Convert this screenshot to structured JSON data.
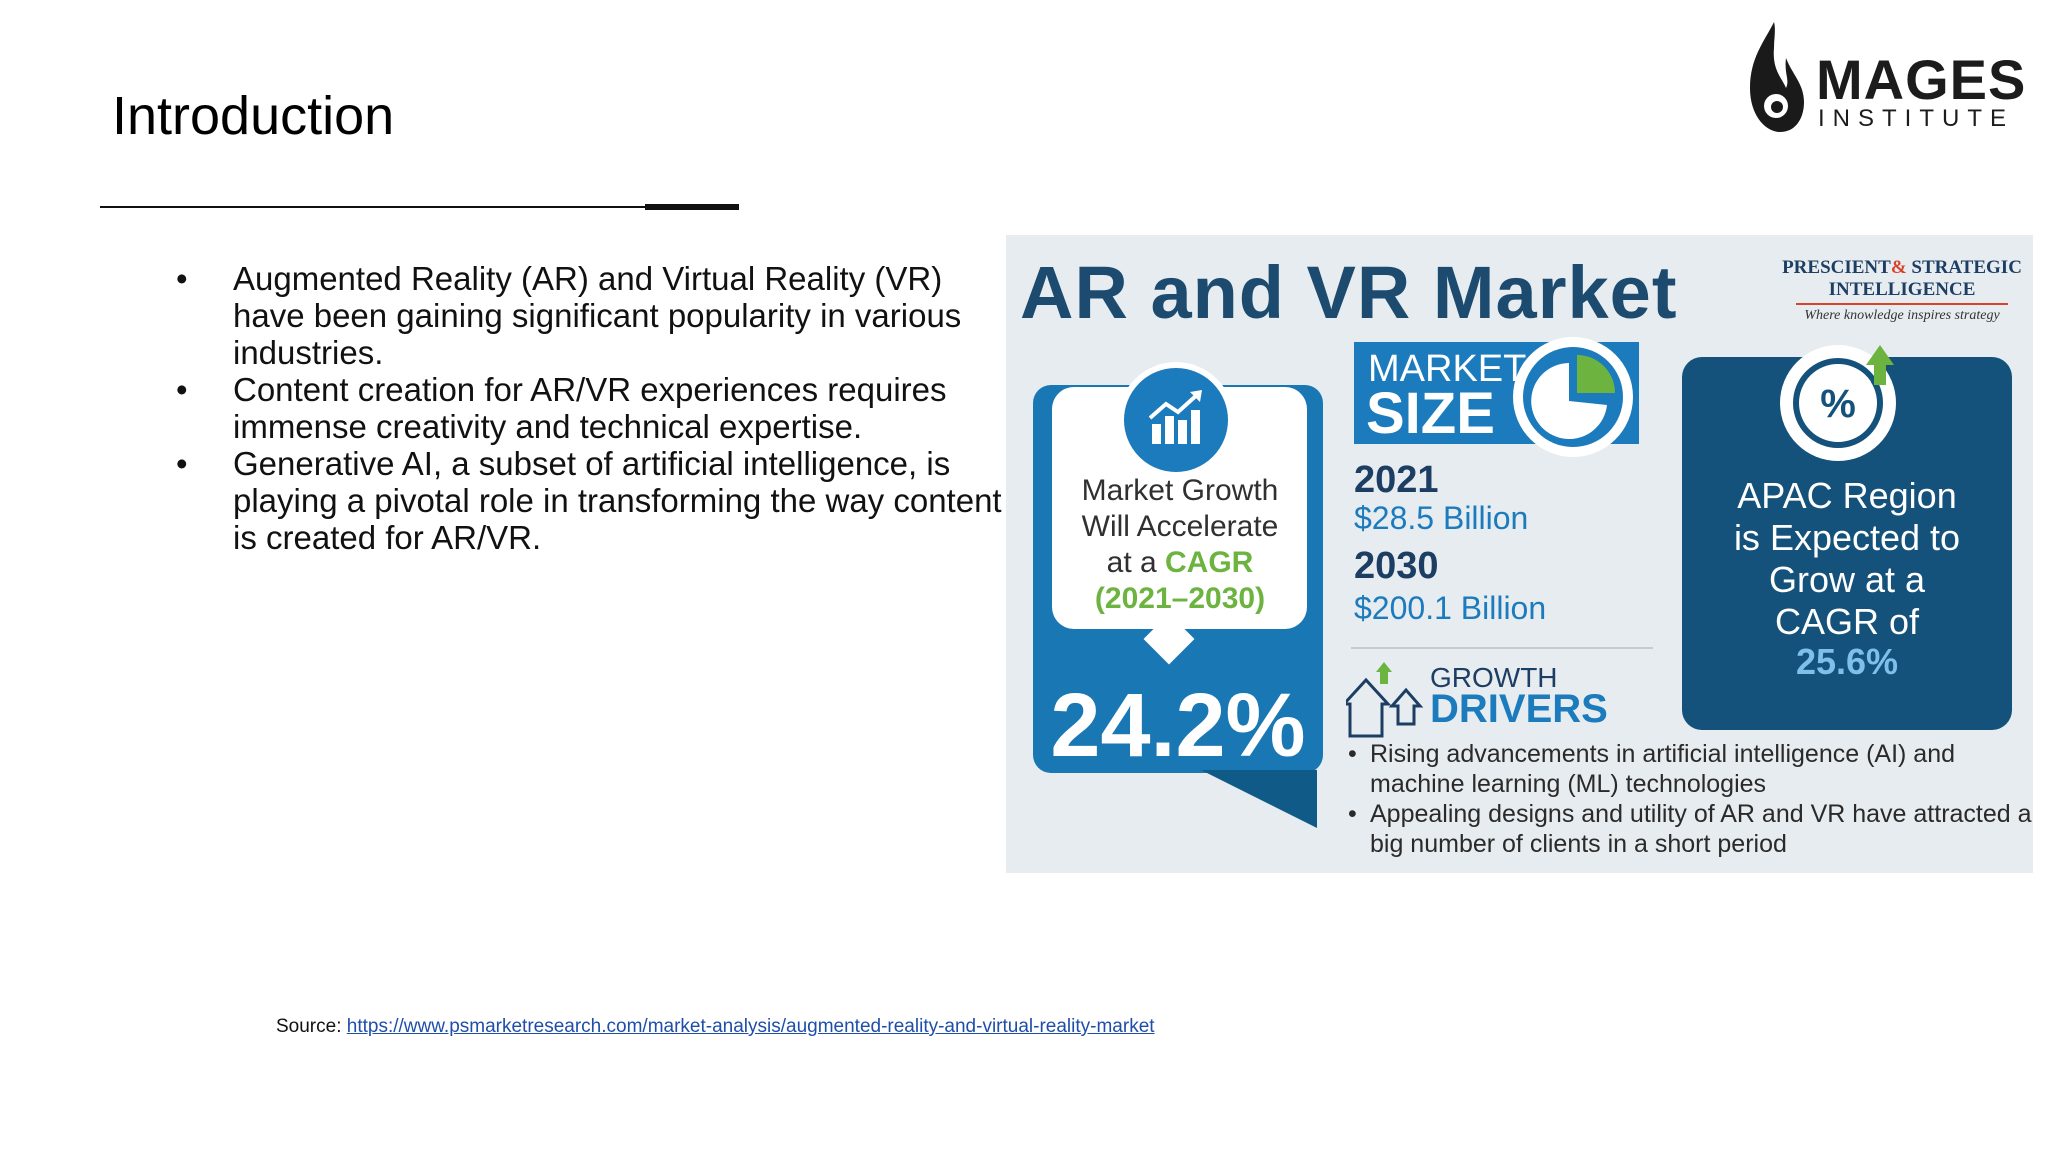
{
  "slide": {
    "title": "Introduction",
    "bullets": [
      "Augmented Reality (AR) and Virtual Reality (VR) have been gaining significant popularity in various industries.",
      "Content creation for AR/VR experiences requires immense creativity and technical expertise.",
      "Generative AI, a subset of artificial intelligence, is playing a pivotal role in transforming the way content is created for AR/VR."
    ],
    "bullet_char": "•",
    "source_label": "Source: ",
    "source_link": "https://www.psmarketresearch.com/market-analysis/augmented-reality-and-virtual-reality-market"
  },
  "logo": {
    "name": "MAGES",
    "subtitle": "INSTITUTE"
  },
  "infographic": {
    "title": "AR and VR Market",
    "publisher": {
      "line1a": "PRESCIENT",
      "amp": "&",
      "line1b": "STRATEGIC",
      "line2": "INTELLIGENCE",
      "tagline": "Where knowledge inspires strategy"
    },
    "growth_card": {
      "line1": "Market Growth",
      "line2": "Will Accelerate",
      "line3a": "at a ",
      "line3b": "CAGR",
      "line4": "(2021–2030)",
      "value": "24.2%"
    },
    "market_size": {
      "label1": "MARKET",
      "label2": "SIZE",
      "year1": "2021",
      "amount1": "$28.5 Billion",
      "year2": "2030",
      "amount2": "$200.1 Billion"
    },
    "growth_drivers": {
      "label1": "GROWTH",
      "label2": "DRIVERS",
      "items": [
        "Rising advancements in artificial intelligence (AI) and machine learning (ML) technologies",
        "Appealing designs and utility of AR and VR have attracted a big number of clients in a short period"
      ]
    },
    "apac_card": {
      "line1": "APAC Region",
      "line2": "is Expected to",
      "line3": "Grow at a",
      "line4": "CAGR of",
      "value": "25.6%",
      "icon_text": "%"
    },
    "colors": {
      "navy": "#1d3e63",
      "blue": "#1b7bbd",
      "dark_blue": "#14527b",
      "green": "#6db33f",
      "background": "#e6ecef",
      "publisher_red": "#d8432a"
    }
  }
}
